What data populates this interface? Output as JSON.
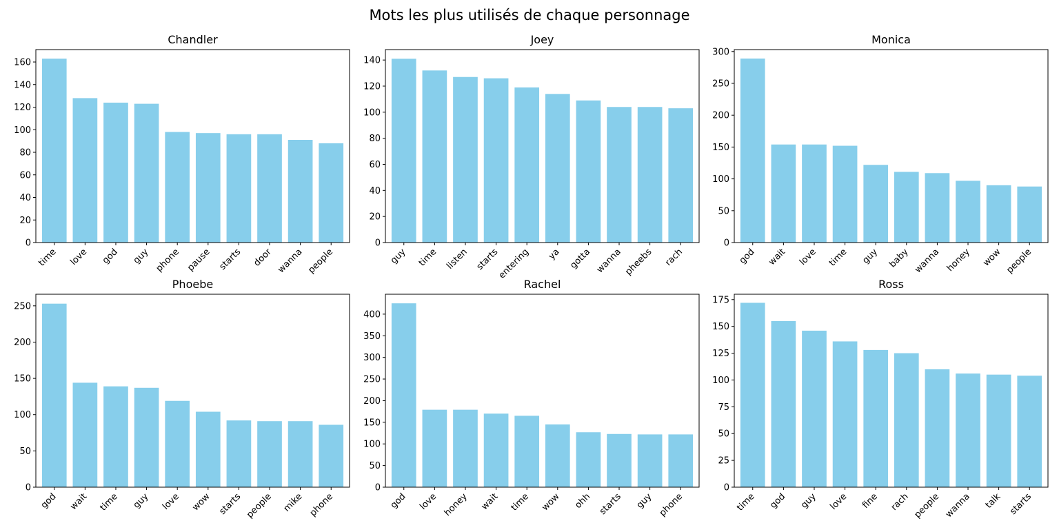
{
  "title": "Mots les plus utilisés de chaque personnage",
  "colors": {
    "bar": "#87ceeb",
    "axis": "#000000"
  },
  "chart_data": [
    {
      "type": "bar",
      "title": "Chandler",
      "categories": [
        "time",
        "love",
        "god",
        "guy",
        "phone",
        "pause",
        "starts",
        "door",
        "wanna",
        "people"
      ],
      "values": [
        163,
        128,
        124,
        123,
        98,
        97,
        96,
        96,
        91,
        88
      ],
      "ylim": [
        0,
        171
      ],
      "yticks": [
        0,
        20,
        40,
        60,
        80,
        100,
        120,
        140,
        160
      ]
    },
    {
      "type": "bar",
      "title": "Joey",
      "categories": [
        "guy",
        "time",
        "listen",
        "starts",
        "entering",
        "ya",
        "gotta",
        "wanna",
        "pheebs",
        "rach"
      ],
      "values": [
        141,
        132,
        127,
        126,
        119,
        114,
        109,
        104,
        104,
        103
      ],
      "ylim": [
        0,
        148
      ],
      "yticks": [
        0,
        20,
        40,
        60,
        80,
        100,
        120,
        140
      ]
    },
    {
      "type": "bar",
      "title": "Monica",
      "categories": [
        "god",
        "wait",
        "love",
        "time",
        "guy",
        "baby",
        "wanna",
        "honey",
        "wow",
        "people"
      ],
      "values": [
        289,
        154,
        154,
        152,
        122,
        111,
        109,
        97,
        90,
        88
      ],
      "ylim": [
        0,
        303
      ],
      "yticks": [
        0,
        50,
        100,
        150,
        200,
        250,
        300
      ]
    },
    {
      "type": "bar",
      "title": "Phoebe",
      "categories": [
        "god",
        "wait",
        "time",
        "guy",
        "love",
        "wow",
        "starts",
        "people",
        "mike",
        "phone"
      ],
      "values": [
        253,
        144,
        139,
        137,
        119,
        104,
        92,
        91,
        91,
        86
      ],
      "ylim": [
        0,
        266
      ],
      "yticks": [
        0,
        50,
        100,
        150,
        200,
        250
      ]
    },
    {
      "type": "bar",
      "title": "Rachel",
      "categories": [
        "god",
        "love",
        "honey",
        "wait",
        "time",
        "wow",
        "ohh",
        "starts",
        "guy",
        "phone"
      ],
      "values": [
        425,
        179,
        179,
        170,
        165,
        145,
        127,
        123,
        122,
        122
      ],
      "ylim": [
        0,
        446
      ],
      "yticks": [
        0,
        50,
        100,
        150,
        200,
        250,
        300,
        350,
        400
      ]
    },
    {
      "type": "bar",
      "title": "Ross",
      "categories": [
        "time",
        "god",
        "guy",
        "love",
        "fine",
        "rach",
        "people",
        "wanna",
        "talk",
        "starts"
      ],
      "values": [
        172,
        155,
        146,
        136,
        128,
        125,
        110,
        106,
        105,
        104
      ],
      "ylim": [
        0,
        180
      ],
      "yticks": [
        0,
        25,
        50,
        75,
        100,
        125,
        150,
        175
      ]
    }
  ]
}
